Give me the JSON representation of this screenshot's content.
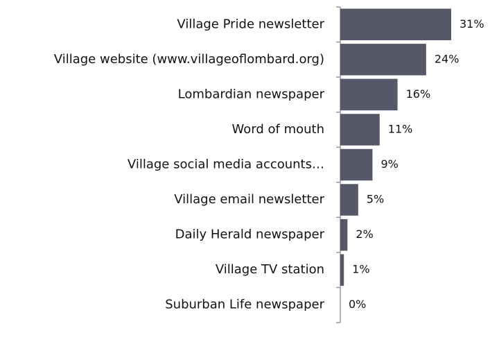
{
  "chart_data": {
    "type": "bar",
    "orientation": "horizontal",
    "categories": [
      "Village Pride newsletter",
      "Village website (www.villageoflombard.org)",
      "Lombardian newspaper",
      "Word of mouth",
      "Village social media accounts…",
      "Village email newsletter",
      "Daily Herald newspaper",
      "Village TV station",
      "Suburban Life newspaper"
    ],
    "values": [
      31,
      24,
      16,
      11,
      9,
      5,
      2,
      1,
      0
    ],
    "value_labels": [
      "31%",
      "24%",
      "16%",
      "11%",
      "9%",
      "5%",
      "2%",
      "1%",
      "0%"
    ],
    "color": "#545869"
  }
}
